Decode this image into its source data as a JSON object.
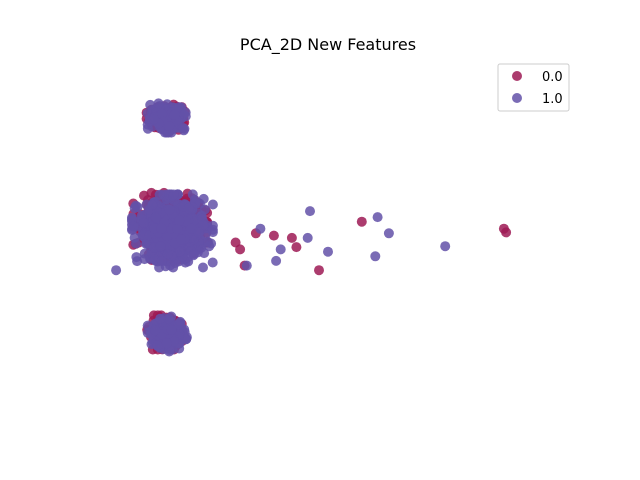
{
  "chart_data": {
    "type": "scatter",
    "title": "PCA_2D New Features",
    "xlabel": "",
    "ylabel": "",
    "axes_visible": false,
    "grid": false,
    "legend_position": "top-right",
    "xlim": [
      -2.5,
      8.5
    ],
    "ylim": [
      -4.0,
      4.0
    ],
    "series": [
      {
        "name": "0.0",
        "color": "#9e1a55",
        "clusters": [
          {
            "center": [
              -0.6,
              2.7
            ],
            "spread": [
              0.32,
              0.22
            ],
            "count": 160
          },
          {
            "center": [
              -0.5,
              0.35
            ],
            "spread": [
              0.62,
              0.55
            ],
            "count": 430
          },
          {
            "center": [
              -0.6,
              -1.95
            ],
            "spread": [
              0.32,
              0.28
            ],
            "count": 150
          }
        ],
        "outliers": [
          [
            1.4,
            0.2
          ],
          [
            1.8,
            0.15
          ],
          [
            2.3,
            -0.1
          ],
          [
            3.75,
            0.45
          ],
          [
            6.9,
            0.3
          ],
          [
            6.95,
            0.22
          ],
          [
            2.8,
            -0.6
          ],
          [
            1.15,
            -0.5
          ],
          [
            2.2,
            0.1
          ],
          [
            0.95,
            0.0
          ],
          [
            1.05,
            -0.15
          ]
        ]
      },
      {
        "name": "1.0",
        "color": "#6351a8",
        "clusters": [
          {
            "center": [
              -0.55,
              2.7
            ],
            "spread": [
              0.34,
              0.24
            ],
            "count": 190
          },
          {
            "center": [
              -0.45,
              0.25
            ],
            "spread": [
              0.68,
              0.6
            ],
            "count": 560
          },
          {
            "center": [
              -0.55,
              -2.0
            ],
            "spread": [
              0.34,
              0.3
            ],
            "count": 180
          }
        ],
        "outliers": [
          [
            2.6,
            0.68
          ],
          [
            4.1,
            0.55
          ],
          [
            4.35,
            0.2
          ],
          [
            5.6,
            -0.08
          ],
          [
            4.05,
            -0.3
          ],
          [
            1.95,
            -0.15
          ],
          [
            2.55,
            0.1
          ],
          [
            3.0,
            -0.2
          ],
          [
            1.5,
            0.3
          ],
          [
            1.85,
            -0.4
          ],
          [
            1.2,
            -0.5
          ],
          [
            -1.7,
            -0.6
          ]
        ]
      }
    ]
  }
}
